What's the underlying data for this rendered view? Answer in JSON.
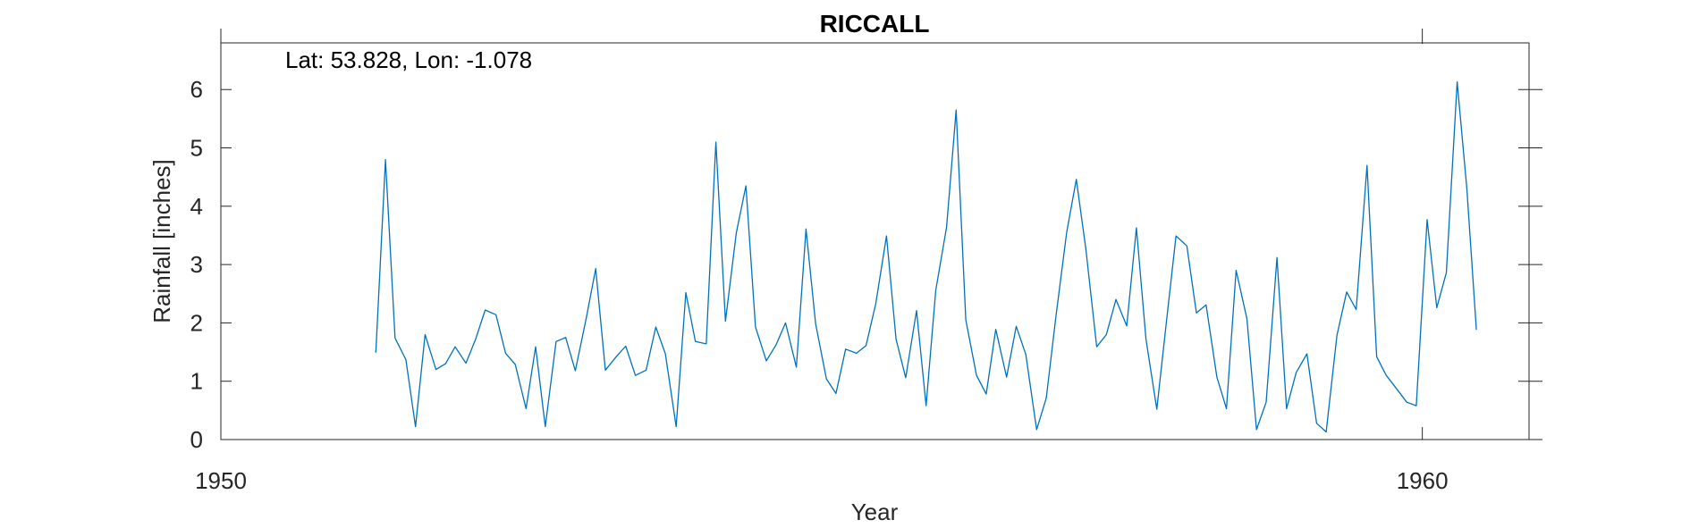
{
  "chart_data": {
    "type": "line",
    "title": "RICCALL",
    "xlabel": "Year",
    "ylabel": "Rainfall [inches]",
    "annotation": "Lat: 53.828, Lon: -1.078",
    "xlim": [
      1950,
      1961
    ],
    "ylim": [
      0,
      6.8
    ],
    "xticks": [
      1950,
      1960
    ],
    "xtick_labels": [
      "1950",
      "1960"
    ],
    "yticks": [
      0,
      1,
      2,
      3,
      4,
      5,
      6
    ],
    "ytick_labels": [
      "0",
      "1",
      "2",
      "3",
      "4",
      "5",
      "6"
    ],
    "grid": false,
    "line_color": "#0072BD",
    "series": [
      {
        "x": [
          1951.29,
          1951.37,
          1951.45,
          1951.54,
          1951.62,
          1951.7,
          1951.79,
          1951.87,
          1951.95,
          1952.04,
          1952.12,
          1952.2,
          1952.29,
          1952.37,
          1952.45,
          1952.54,
          1952.62,
          1952.7,
          1952.79,
          1952.87,
          1952.95,
          1953.04,
          1953.12,
          1953.2,
          1953.29,
          1953.37,
          1953.45,
          1953.54,
          1953.62,
          1953.7,
          1953.79,
          1953.87,
          1953.95,
          1954.04,
          1954.12,
          1954.2,
          1954.29,
          1954.37,
          1954.45,
          1954.54,
          1954.62,
          1954.7,
          1954.79,
          1954.87,
          1954.95,
          1955.04,
          1955.12,
          1955.2,
          1955.29,
          1955.37,
          1955.45,
          1955.54,
          1955.62,
          1955.7,
          1955.79,
          1955.87,
          1955.95,
          1956.04,
          1956.12,
          1956.2,
          1956.29,
          1956.37,
          1956.45,
          1956.54,
          1956.62,
          1956.7,
          1956.79,
          1956.87,
          1956.95,
          1957.04,
          1957.12,
          1957.2,
          1957.29,
          1957.37,
          1957.45,
          1957.54,
          1957.62,
          1957.7,
          1957.79,
          1957.87,
          1957.95,
          1958.04,
          1958.12,
          1958.2,
          1958.29,
          1958.37,
          1958.45,
          1958.54,
          1958.62,
          1958.7,
          1958.79,
          1958.87,
          1958.95,
          1959.04,
          1959.12,
          1959.2,
          1959.29,
          1959.37,
          1959.45,
          1959.54,
          1959.62,
          1959.7,
          1959.79,
          1959.87,
          1959.95,
          1960.04,
          1960.12,
          1960.2,
          1960.29,
          1960.37,
          1960.45
        ],
        "y": [
          1.49,
          4.8,
          1.74,
          1.37,
          0.22,
          1.8,
          1.2,
          1.3,
          1.59,
          1.31,
          1.72,
          2.22,
          2.14,
          1.48,
          1.29,
          0.53,
          1.59,
          0.22,
          1.68,
          1.75,
          1.18,
          2.07,
          2.93,
          1.19,
          1.42,
          1.6,
          1.1,
          1.19,
          1.93,
          1.47,
          0.22,
          2.52,
          1.68,
          1.64,
          5.1,
          2.03,
          3.54,
          4.35,
          1.93,
          1.35,
          1.62,
          2.0,
          1.24,
          3.61,
          1.99,
          1.04,
          0.79,
          1.55,
          1.48,
          1.61,
          2.32,
          3.49,
          1.72,
          1.06,
          2.21,
          0.58,
          2.56,
          3.64,
          5.65,
          2.05,
          1.1,
          0.78,
          1.89,
          1.07,
          1.94,
          1.46,
          0.17,
          0.71,
          2.1,
          3.55,
          4.46,
          3.26,
          1.59,
          1.8,
          2.4,
          1.95,
          3.63,
          1.72,
          0.52,
          2.01,
          3.49,
          3.32,
          2.17,
          2.31,
          1.07,
          0.53,
          2.9,
          2.07,
          0.17,
          0.64,
          3.12,
          0.53,
          1.15,
          1.47,
          0.28,
          0.13,
          1.79,
          2.53,
          2.23,
          4.7,
          1.42,
          1.1,
          0.86,
          0.64,
          0.58,
          3.77,
          2.26,
          2.86,
          6.13,
          4.31,
          1.88
        ]
      }
    ]
  }
}
